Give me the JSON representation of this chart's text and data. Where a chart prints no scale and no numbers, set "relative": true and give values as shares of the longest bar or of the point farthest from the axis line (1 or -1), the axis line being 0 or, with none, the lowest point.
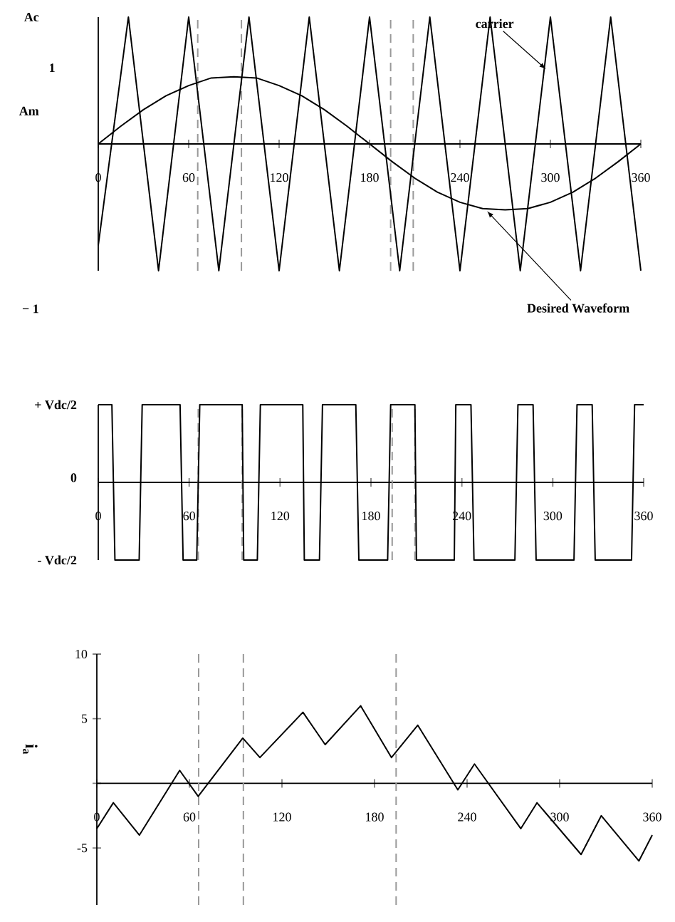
{
  "chart_data": [
    {
      "type": "line",
      "relative": true,
      "xlim": [
        0,
        360
      ],
      "xticks": [
        0,
        60,
        120,
        180,
        240,
        300,
        360
      ],
      "series": [
        {
          "color": "#000000",
          "x": [
            0,
            20,
            40,
            60,
            80,
            100,
            120,
            140,
            160,
            180,
            200,
            220,
            240,
            260,
            280,
            300,
            320,
            340,
            360
          ],
          "values": [
            -0.8,
            1,
            -1,
            1,
            -1,
            1,
            -1,
            1,
            -1,
            1,
            -1,
            1,
            -1,
            1,
            -1,
            1,
            -1,
            1,
            -1
          ]
        },
        {
          "color": "#000000",
          "x": [
            0,
            15,
            30,
            45,
            60,
            75,
            90,
            105,
            120,
            135,
            150,
            165,
            180,
            195,
            210,
            225,
            240,
            255,
            270,
            285,
            300,
            315,
            330,
            345,
            360
          ],
          "values": [
            0,
            0.14,
            0.27,
            0.38,
            0.46,
            0.52,
            0.53,
            0.52,
            0.46,
            0.38,
            0.27,
            0.14,
            0,
            -0.14,
            -0.27,
            -0.38,
            -0.46,
            -0.51,
            -0.52,
            -0.51,
            -0.46,
            -0.38,
            -0.27,
            -0.14,
            0
          ]
        }
      ],
      "ref_lines": [
        {
          "axis": "x",
          "value": 66,
          "color": "#999999",
          "line_style": "dashed"
        },
        {
          "axis": "x",
          "value": 95,
          "color": "#999999",
          "line_style": "dashed"
        },
        {
          "axis": "x",
          "value": 194,
          "color": "#999999",
          "line_style": "dashed"
        },
        {
          "axis": "x",
          "value": 209,
          "color": "#999999",
          "line_style": "dashed"
        }
      ],
      "annotations": [
        "Ac",
        "1",
        "Am",
        "− 1",
        {
          "text": "carrier",
          "x": 297,
          "y": 0.59
        },
        {
          "text": "Desired Waveform",
          "x": 258,
          "y": -0.53
        }
      ]
    },
    {
      "type": "line",
      "relative": true,
      "xlim": [
        0,
        360
      ],
      "xticks": [
        0,
        60,
        120,
        180,
        240,
        300,
        360
      ],
      "series": [
        {
          "color": "#000000",
          "x": [
            0,
            9,
            11,
            27,
            29,
            54,
            56,
            65,
            67,
            95,
            96,
            105,
            107,
            135,
            136,
            146,
            148,
            170,
            172,
            191,
            193,
            209,
            210,
            235,
            236,
            246,
            248,
            275,
            277,
            287,
            289,
            314,
            316,
            326,
            328,
            352,
            354,
            360
          ],
          "values": [
            1,
            1,
            -1,
            -1,
            1,
            1,
            -1,
            -1,
            1,
            1,
            -1,
            -1,
            1,
            1,
            -1,
            -1,
            1,
            1,
            -1,
            -1,
            1,
            1,
            -1,
            -1,
            1,
            1,
            -1,
            -1,
            1,
            1,
            -1,
            -1,
            1,
            1,
            -1,
            -1,
            1,
            1
          ]
        }
      ],
      "ref_lines": [
        {
          "axis": "x",
          "value": 66,
          "color": "#999999",
          "line_style": "dashed"
        },
        {
          "axis": "x",
          "value": 95,
          "color": "#999999",
          "line_style": "dashed"
        },
        {
          "axis": "x",
          "value": 194,
          "color": "#999999",
          "line_style": "dashed"
        },
        {
          "axis": "x",
          "value": 209,
          "color": "#999999",
          "line_style": "dashed"
        }
      ],
      "annotations": [
        "+ Vdc/2",
        "0",
        "- Vdc/2"
      ]
    },
    {
      "type": "line",
      "xlim": [
        0,
        360
      ],
      "xticks": [
        0,
        60,
        120,
        180,
        240,
        300,
        360
      ],
      "ylim": [
        -9.4,
        10
      ],
      "yticks": [
        10,
        5,
        {
          "value": 0,
          "label": null
        },
        -5
      ],
      "ylabel": "**i$_{a}$**",
      "series": [
        {
          "color": "#000000",
          "x": [
            0,
            10.7,
            27.6,
            53.7,
            65.7,
            94.6,
            105.7,
            133.6,
            148,
            171,
            191,
            208,
            234,
            244.8,
            274.8,
            285.3,
            313.9,
            327,
            351.4,
            360
          ],
          "values": [
            -3.5,
            -1.5,
            -4,
            1,
            -1,
            3.5,
            2,
            5.5,
            3,
            6,
            2,
            4.5,
            -0.5,
            1.5,
            -3.5,
            -1.5,
            -5.5,
            -2.5,
            -6,
            -4
          ]
        }
      ],
      "ref_lines": [
        {
          "axis": "x",
          "value": 66,
          "color": "#999999",
          "line_style": "dashed"
        },
        {
          "axis": "x",
          "value": 95,
          "color": "#999999",
          "line_style": "dashed"
        },
        {
          "axis": "x",
          "value": 194,
          "color": "#999999",
          "line_style": "dashed"
        }
      ]
    }
  ]
}
